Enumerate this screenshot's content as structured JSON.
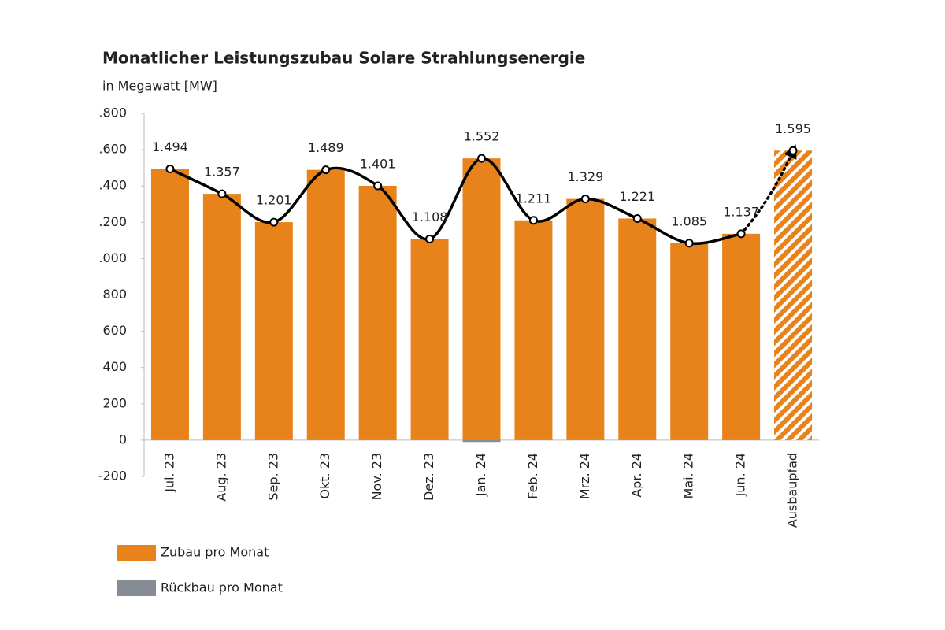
{
  "chart_data": {
    "type": "bar",
    "title": "Monatlicher Leistungszubau Solare Strahlungsenergie",
    "subtitle": "in Megawatt [MW]",
    "categories": [
      "Jul. 23",
      "Aug. 23",
      "Sep. 23",
      "Okt. 23",
      "Nov. 23",
      "Dez. 23",
      "Jan. 24",
      "Feb. 24",
      "Mrz. 24",
      "Apr. 24",
      "Mai. 24",
      "Jun. 24",
      "Ausbaupfad"
    ],
    "series": [
      {
        "name": "Zubau pro Monat",
        "color": "#e8821a",
        "values": [
          1494,
          1357,
          1201,
          1489,
          1401,
          1108,
          1552,
          1211,
          1329,
          1221,
          1085,
          1137,
          1595
        ],
        "value_labels": [
          "1.494",
          "1.357",
          "1.201",
          "1.489",
          "1.401",
          "1.108",
          "1.552",
          "1.211",
          "1.329",
          "1.221",
          "1.085",
          "1.137",
          "1.595"
        ]
      },
      {
        "name": "Rückbau pro Monat",
        "color": "#858c93",
        "values": [
          0,
          0,
          0,
          0,
          0,
          0,
          -10,
          0,
          0,
          0,
          0,
          0,
          null
        ]
      }
    ],
    "ylim": [
      -200,
      1800
    ],
    "yticks": [
      -200,
      0,
      200,
      400,
      600,
      800,
      {
        "value": 1000,
        "label": ".000"
      },
      {
        "value": 1200,
        "label": ".200"
      },
      {
        "value": 1400,
        "label": ".400"
      },
      {
        "value": 1600,
        "label": ".600"
      },
      {
        "value": 1800,
        "label": ".800"
      }
    ],
    "hatched_last": true,
    "trend_line": true,
    "legend": "bottom-left"
  }
}
